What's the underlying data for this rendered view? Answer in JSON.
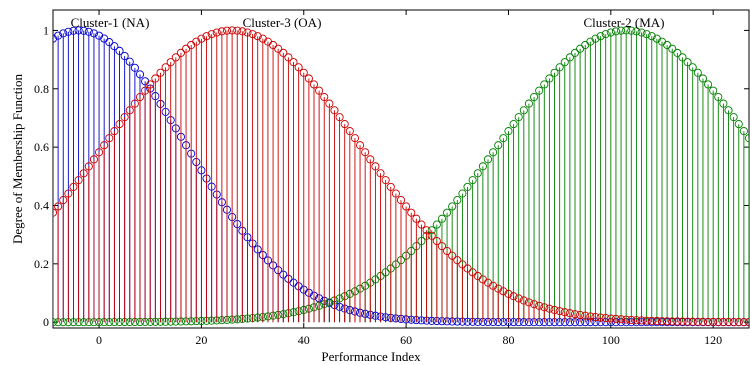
{
  "chart_data": {
    "type": "stem",
    "xlabel": "Performance Index",
    "ylabel": "Degree of Membership Function",
    "xlim": [
      -9,
      127
    ],
    "ylim": [
      -0.02,
      1.07
    ],
    "xticks": [
      0,
      20,
      40,
      60,
      80,
      100,
      120
    ],
    "yticks": [
      0,
      0.2,
      0.4,
      0.6,
      0.8,
      1
    ],
    "ytick_labels": [
      "0",
      "0.2",
      "0.4",
      "0.6",
      "0.8",
      "1"
    ],
    "x_start": -9,
    "x_end": 127,
    "x_step": 1,
    "series": [
      {
        "name": "Cluster-1 (NA)",
        "color": "#0000cc",
        "center": -4,
        "sigma": 21,
        "sample_values": [
          {
            "x": -9,
            "y": 0.97
          },
          {
            "x": -4,
            "y": 1.0
          },
          {
            "x": 20,
            "y": 0.53
          },
          {
            "x": 40,
            "y": 0.11
          },
          {
            "x": 80,
            "y": 0.0
          }
        ]
      },
      {
        "name": "Cluster-3 (OA)",
        "color": "#cc0000",
        "center": 26,
        "sigma": 25,
        "sample_values": [
          {
            "x": -9,
            "y": 0.37
          },
          {
            "x": 0,
            "y": 0.58
          },
          {
            "x": 26,
            "y": 1.0
          },
          {
            "x": 60,
            "y": 0.4
          },
          {
            "x": 100,
            "y": 0.01
          }
        ]
      },
      {
        "name": "Cluster-2 (MA)",
        "color": "#008000",
        "center": 103,
        "sigma": 25,
        "sample_values": [
          {
            "x": 20,
            "y": 0.0
          },
          {
            "x": 60,
            "y": 0.23
          },
          {
            "x": 80,
            "y": 0.65
          },
          {
            "x": 103,
            "y": 1.0
          },
          {
            "x": 127,
            "y": 0.63
          }
        ]
      }
    ],
    "annotations": [
      {
        "text": "Cluster-1 (NA)",
        "anchor": "top-left"
      },
      {
        "text": "Cluster-3 (OA)",
        "anchor": "top-center"
      },
      {
        "text": "Cluster-2 (MA)",
        "anchor": "top-right"
      }
    ],
    "grid": false,
    "legend": "none"
  }
}
